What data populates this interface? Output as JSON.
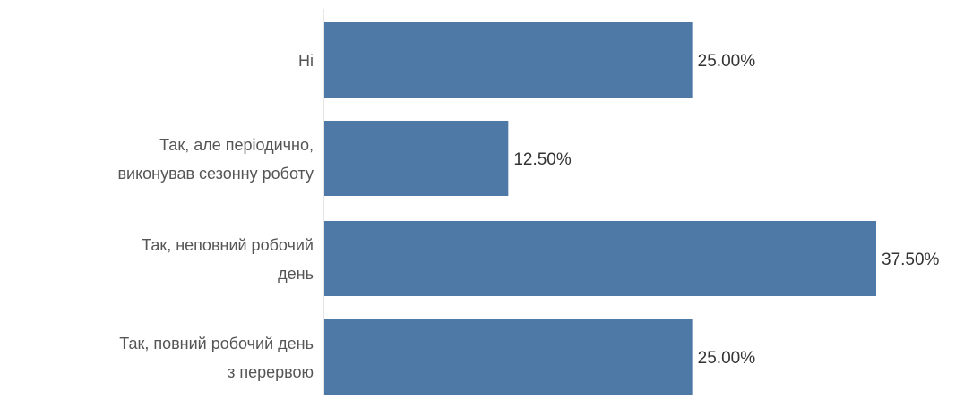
{
  "chart_data": {
    "type": "bar",
    "orientation": "horizontal",
    "categories": [
      "Ні",
      "Так, але періодично, виконував сезонну роботу",
      "Так, неповний робочий день",
      "Так, повний робочий день з перервою"
    ],
    "category_lines": [
      [
        "Ні"
      ],
      [
        "Так, але періодично,",
        "виконував сезонну роботу"
      ],
      [
        "Так, неповний робочий",
        "день"
      ],
      [
        "Так, повний робочий день",
        "з перервою"
      ]
    ],
    "values": [
      25.0,
      12.5,
      37.5,
      25.0
    ],
    "value_labels": [
      "25.00%",
      "12.50%",
      "37.50%",
      "25.00%"
    ],
    "title": "",
    "xlabel": "",
    "ylabel": "",
    "xlim": [
      0,
      40
    ],
    "grid": false,
    "legend": "none",
    "bar_color": "#4e79a7",
    "label_color": "#555555",
    "value_label_color": "#333333",
    "axis_line_color": "#e6e6e6"
  }
}
